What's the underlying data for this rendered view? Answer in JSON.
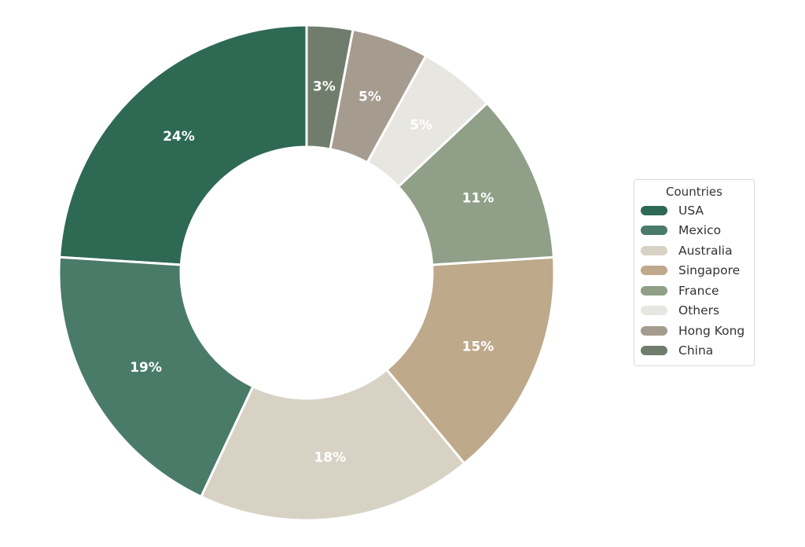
{
  "chart_data": {
    "type": "pie",
    "donut": true,
    "legend_title": "Countries",
    "legend_position": "right",
    "slices": [
      {
        "label": "USA",
        "value": 24,
        "value_label": "24%",
        "color": "#2e6954"
      },
      {
        "label": "Mexico",
        "value": 19,
        "value_label": "19%",
        "color": "#4a7b69"
      },
      {
        "label": "Australia",
        "value": 18,
        "value_label": "18%",
        "color": "#d7d2c4"
      },
      {
        "label": "Singapore",
        "value": 15,
        "value_label": "15%",
        "color": "#bea98b"
      },
      {
        "label": "France",
        "value": 11,
        "value_label": "11%",
        "color": "#8f9f88"
      },
      {
        "label": "Others",
        "value": 5,
        "value_label": "5%",
        "color": "#e7e6e1"
      },
      {
        "label": "Hong Kong",
        "value": 5,
        "value_label": "5%",
        "color": "#a59b8f"
      },
      {
        "label": "China",
        "value": 3,
        "value_label": "3%",
        "color": "#717d6c"
      }
    ]
  }
}
